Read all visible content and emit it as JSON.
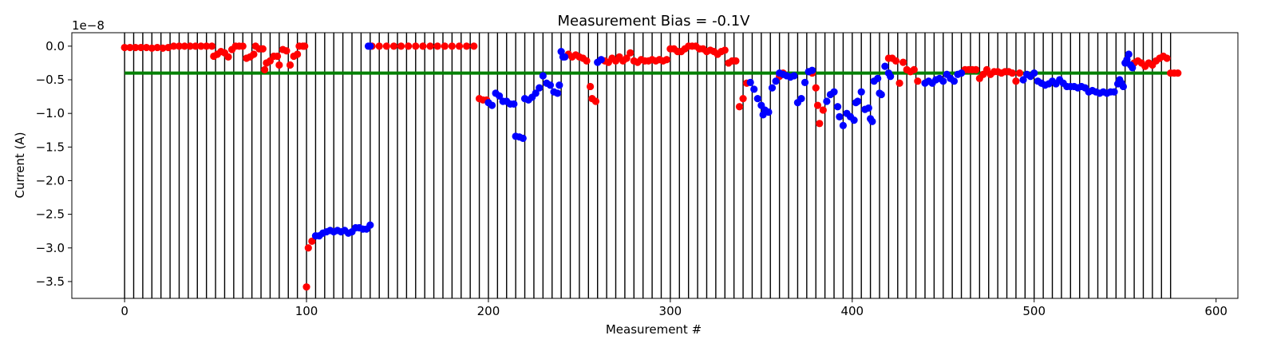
{
  "chart_data": {
    "type": "scatter",
    "title": "Measurement Bias = -0.1V",
    "xlabel": "Measurement #",
    "ylabel": "Current (A)",
    "y_offset_label": "1e−8",
    "y_scale": 1e-08,
    "xlim": [
      -29,
      612
    ],
    "ylim": [
      -3.75,
      0.2
    ],
    "x_ticks": [
      0,
      100,
      200,
      300,
      400,
      500,
      600
    ],
    "y_ticks": [
      0.0,
      -0.5,
      -1.0,
      -1.5,
      -2.0,
      -2.5,
      -3.0,
      -3.5
    ],
    "x_tick_labels": [
      "0",
      "100",
      "200",
      "300",
      "400",
      "500",
      "600"
    ],
    "y_tick_labels": [
      "0.0",
      "−0.5",
      "−1.0",
      "−1.5",
      "−2.0",
      "−2.5",
      "−3.0",
      "−3.5"
    ],
    "grid": false,
    "legend": "none",
    "reference_line": {
      "y": -0.4,
      "x_range": [
        0,
        580
      ],
      "color": "#008000"
    },
    "vertical_lines": {
      "start": 0,
      "step": 5,
      "end": 575,
      "color": "#000000"
    },
    "colors": {
      "red": "#ff0000",
      "blue": "#0000ff"
    },
    "series": [
      {
        "color": "red",
        "points": [
          [
            0,
            -0.02
          ],
          [
            3,
            -0.02
          ],
          [
            6,
            -0.02
          ],
          [
            9,
            -0.02
          ],
          [
            12,
            -0.02
          ],
          [
            15,
            -0.03
          ],
          [
            18,
            -0.02
          ],
          [
            21,
            -0.03
          ],
          [
            24,
            -0.02
          ],
          [
            27,
            0.0
          ],
          [
            30,
            0.0
          ],
          [
            33,
            0.0
          ],
          [
            36,
            0.0
          ],
          [
            39,
            0.0
          ],
          [
            42,
            0.0
          ],
          [
            45,
            0.0
          ],
          [
            48,
            0.0
          ],
          [
            49,
            -0.15
          ],
          [
            51,
            -0.12
          ],
          [
            53,
            -0.08
          ],
          [
            55,
            -0.1
          ],
          [
            57,
            -0.16
          ],
          [
            59,
            -0.05
          ],
          [
            61,
            0.0
          ],
          [
            63,
            0.0
          ],
          [
            65,
            0.0
          ],
          [
            67,
            -0.18
          ],
          [
            69,
            -0.16
          ],
          [
            71,
            -0.12
          ],
          [
            72,
            0.0
          ],
          [
            74,
            -0.04
          ],
          [
            76,
            -0.04
          ],
          [
            77,
            -0.35
          ],
          [
            78,
            -0.25
          ],
          [
            80,
            -0.22
          ],
          [
            82,
            -0.15
          ],
          [
            84,
            -0.15
          ],
          [
            85,
            -0.28
          ],
          [
            87,
            -0.05
          ],
          [
            89,
            -0.07
          ],
          [
            91,
            -0.28
          ],
          [
            93,
            -0.15
          ],
          [
            95,
            -0.12
          ],
          [
            96,
            0.0
          ],
          [
            98,
            0.0
          ],
          [
            99,
            0.0
          ],
          [
            100,
            -3.58
          ],
          [
            101,
            -3.0
          ],
          [
            103,
            -2.9
          ],
          [
            136,
            0.0
          ],
          [
            140,
            0.0
          ],
          [
            144,
            0.0
          ],
          [
            148,
            0.0
          ],
          [
            152,
            0.0
          ],
          [
            156,
            0.0
          ],
          [
            160,
            0.0
          ],
          [
            164,
            0.0
          ],
          [
            168,
            0.0
          ],
          [
            172,
            0.0
          ],
          [
            176,
            0.0
          ],
          [
            180,
            0.0
          ],
          [
            184,
            0.0
          ],
          [
            188,
            0.0
          ],
          [
            192,
            0.0
          ],
          [
            195,
            -0.78
          ],
          [
            197,
            -0.8
          ],
          [
            199,
            -0.8
          ],
          [
            244,
            -0.12
          ],
          [
            246,
            -0.16
          ],
          [
            248,
            -0.13
          ],
          [
            250,
            -0.16
          ],
          [
            252,
            -0.18
          ],
          [
            254,
            -0.22
          ],
          [
            256,
            -0.6
          ],
          [
            257,
            -0.78
          ],
          [
            259,
            -0.82
          ],
          [
            264,
            -0.22
          ],
          [
            266,
            -0.24
          ],
          [
            268,
            -0.18
          ],
          [
            270,
            -0.22
          ],
          [
            272,
            -0.16
          ],
          [
            274,
            -0.22
          ],
          [
            276,
            -0.18
          ],
          [
            278,
            -0.1
          ],
          [
            280,
            -0.22
          ],
          [
            282,
            -0.24
          ],
          [
            284,
            -0.2
          ],
          [
            286,
            -0.22
          ],
          [
            288,
            -0.22
          ],
          [
            290,
            -0.2
          ],
          [
            292,
            -0.22
          ],
          [
            294,
            -0.2
          ],
          [
            296,
            -0.22
          ],
          [
            298,
            -0.2
          ],
          [
            300,
            -0.04
          ],
          [
            302,
            -0.04
          ],
          [
            304,
            -0.08
          ],
          [
            306,
            -0.08
          ],
          [
            308,
            -0.04
          ],
          [
            310,
            0.0
          ],
          [
            312,
            0.0
          ],
          [
            314,
            0.0
          ],
          [
            316,
            -0.04
          ],
          [
            318,
            -0.04
          ],
          [
            320,
            -0.08
          ],
          [
            322,
            -0.06
          ],
          [
            324,
            -0.08
          ],
          [
            326,
            -0.12
          ],
          [
            328,
            -0.08
          ],
          [
            330,
            -0.06
          ],
          [
            332,
            -0.25
          ],
          [
            334,
            -0.22
          ],
          [
            336,
            -0.22
          ],
          [
            338,
            -0.9
          ],
          [
            340,
            -0.78
          ],
          [
            342,
            -0.55
          ],
          [
            360,
            -0.45
          ],
          [
            362,
            -0.4
          ],
          [
            378,
            -0.4
          ],
          [
            380,
            -0.62
          ],
          [
            381,
            -0.88
          ],
          [
            382,
            -1.15
          ],
          [
            384,
            -0.95
          ],
          [
            420,
            -0.18
          ],
          [
            422,
            -0.18
          ],
          [
            424,
            -0.22
          ],
          [
            426,
            -0.55
          ],
          [
            428,
            -0.24
          ],
          [
            430,
            -0.35
          ],
          [
            432,
            -0.38
          ],
          [
            434,
            -0.35
          ],
          [
            436,
            -0.52
          ],
          [
            462,
            -0.35
          ],
          [
            464,
            -0.35
          ],
          [
            466,
            -0.35
          ],
          [
            468,
            -0.35
          ],
          [
            470,
            -0.48
          ],
          [
            472,
            -0.42
          ],
          [
            474,
            -0.35
          ],
          [
            476,
            -0.42
          ],
          [
            478,
            -0.38
          ],
          [
            480,
            -0.38
          ],
          [
            482,
            -0.4
          ],
          [
            484,
            -0.38
          ],
          [
            486,
            -0.38
          ],
          [
            488,
            -0.4
          ],
          [
            490,
            -0.52
          ],
          [
            492,
            -0.4
          ],
          [
            555,
            -0.25
          ],
          [
            557,
            -0.22
          ],
          [
            559,
            -0.25
          ],
          [
            561,
            -0.3
          ],
          [
            563,
            -0.25
          ],
          [
            565,
            -0.28
          ],
          [
            567,
            -0.22
          ],
          [
            569,
            -0.18
          ],
          [
            571,
            -0.15
          ],
          [
            573,
            -0.18
          ],
          [
            575,
            -0.4
          ],
          [
            577,
            -0.4
          ],
          [
            579,
            -0.4
          ]
        ]
      },
      {
        "color": "blue",
        "points": [
          [
            105,
            -2.82
          ],
          [
            107,
            -2.82
          ],
          [
            109,
            -2.78
          ],
          [
            111,
            -2.76
          ],
          [
            113,
            -2.74
          ],
          [
            115,
            -2.76
          ],
          [
            117,
            -2.74
          ],
          [
            119,
            -2.76
          ],
          [
            121,
            -2.74
          ],
          [
            123,
            -2.78
          ],
          [
            125,
            -2.76
          ],
          [
            127,
            -2.7
          ],
          [
            129,
            -2.7
          ],
          [
            131,
            -2.72
          ],
          [
            133,
            -2.72
          ],
          [
            135,
            -2.66
          ],
          [
            134,
            0.0
          ],
          [
            135,
            0.0
          ],
          [
            200,
            -0.84
          ],
          [
            202,
            -0.88
          ],
          [
            204,
            -0.7
          ],
          [
            206,
            -0.74
          ],
          [
            208,
            -0.82
          ],
          [
            210,
            -0.82
          ],
          [
            212,
            -0.86
          ],
          [
            214,
            -0.86
          ],
          [
            215,
            -1.34
          ],
          [
            217,
            -1.35
          ],
          [
            219,
            -1.37
          ],
          [
            220,
            -0.78
          ],
          [
            222,
            -0.8
          ],
          [
            224,
            -0.76
          ],
          [
            226,
            -0.7
          ],
          [
            228,
            -0.62
          ],
          [
            230,
            -0.44
          ],
          [
            232,
            -0.55
          ],
          [
            234,
            -0.58
          ],
          [
            236,
            -0.68
          ],
          [
            238,
            -0.7
          ],
          [
            239,
            -0.58
          ],
          [
            240,
            -0.08
          ],
          [
            241,
            -0.16
          ],
          [
            242,
            -0.16
          ],
          [
            260,
            -0.24
          ],
          [
            262,
            -0.2
          ],
          [
            344,
            -0.54
          ],
          [
            346,
            -0.64
          ],
          [
            348,
            -0.78
          ],
          [
            350,
            -0.88
          ],
          [
            351,
            -1.02
          ],
          [
            352,
            -0.95
          ],
          [
            354,
            -0.98
          ],
          [
            356,
            -0.62
          ],
          [
            358,
            -0.52
          ],
          [
            360,
            -0.4
          ],
          [
            362,
            -0.42
          ],
          [
            364,
            -0.44
          ],
          [
            366,
            -0.46
          ],
          [
            368,
            -0.44
          ],
          [
            370,
            -0.84
          ],
          [
            372,
            -0.78
          ],
          [
            374,
            -0.54
          ],
          [
            376,
            -0.38
          ],
          [
            378,
            -0.36
          ],
          [
            386,
            -0.82
          ],
          [
            388,
            -0.72
          ],
          [
            390,
            -0.68
          ],
          [
            392,
            -0.9
          ],
          [
            393,
            -1.05
          ],
          [
            395,
            -1.18
          ],
          [
            397,
            -1.0
          ],
          [
            399,
            -1.05
          ],
          [
            401,
            -1.1
          ],
          [
            402,
            -0.84
          ],
          [
            403,
            -0.82
          ],
          [
            405,
            -0.68
          ],
          [
            407,
            -0.94
          ],
          [
            409,
            -0.92
          ],
          [
            410,
            -1.08
          ],
          [
            411,
            -1.12
          ],
          [
            412,
            -0.52
          ],
          [
            414,
            -0.48
          ],
          [
            415,
            -0.7
          ],
          [
            416,
            -0.72
          ],
          [
            418,
            -0.3
          ],
          [
            420,
            -0.4
          ],
          [
            421,
            -0.45
          ],
          [
            440,
            -0.55
          ],
          [
            442,
            -0.52
          ],
          [
            444,
            -0.55
          ],
          [
            446,
            -0.5
          ],
          [
            448,
            -0.48
          ],
          [
            450,
            -0.52
          ],
          [
            452,
            -0.42
          ],
          [
            454,
            -0.48
          ],
          [
            456,
            -0.52
          ],
          [
            458,
            -0.42
          ],
          [
            460,
            -0.4
          ],
          [
            494,
            -0.5
          ],
          [
            496,
            -0.42
          ],
          [
            498,
            -0.45
          ],
          [
            500,
            -0.4
          ],
          [
            502,
            -0.52
          ],
          [
            504,
            -0.55
          ],
          [
            506,
            -0.58
          ],
          [
            508,
            -0.56
          ],
          [
            510,
            -0.52
          ],
          [
            512,
            -0.56
          ],
          [
            514,
            -0.5
          ],
          [
            516,
            -0.55
          ],
          [
            518,
            -0.6
          ],
          [
            520,
            -0.6
          ],
          [
            522,
            -0.6
          ],
          [
            524,
            -0.62
          ],
          [
            526,
            -0.6
          ],
          [
            528,
            -0.62
          ],
          [
            530,
            -0.68
          ],
          [
            532,
            -0.66
          ],
          [
            534,
            -0.68
          ],
          [
            536,
            -0.7
          ],
          [
            538,
            -0.68
          ],
          [
            540,
            -0.7
          ],
          [
            542,
            -0.68
          ],
          [
            544,
            -0.68
          ],
          [
            546,
            -0.56
          ],
          [
            547,
            -0.5
          ],
          [
            548,
            -0.55
          ],
          [
            549,
            -0.6
          ],
          [
            550,
            -0.25
          ],
          [
            551,
            -0.2
          ],
          [
            552,
            -0.12
          ],
          [
            553,
            -0.28
          ],
          [
            554,
            -0.32
          ]
        ]
      }
    ]
  }
}
